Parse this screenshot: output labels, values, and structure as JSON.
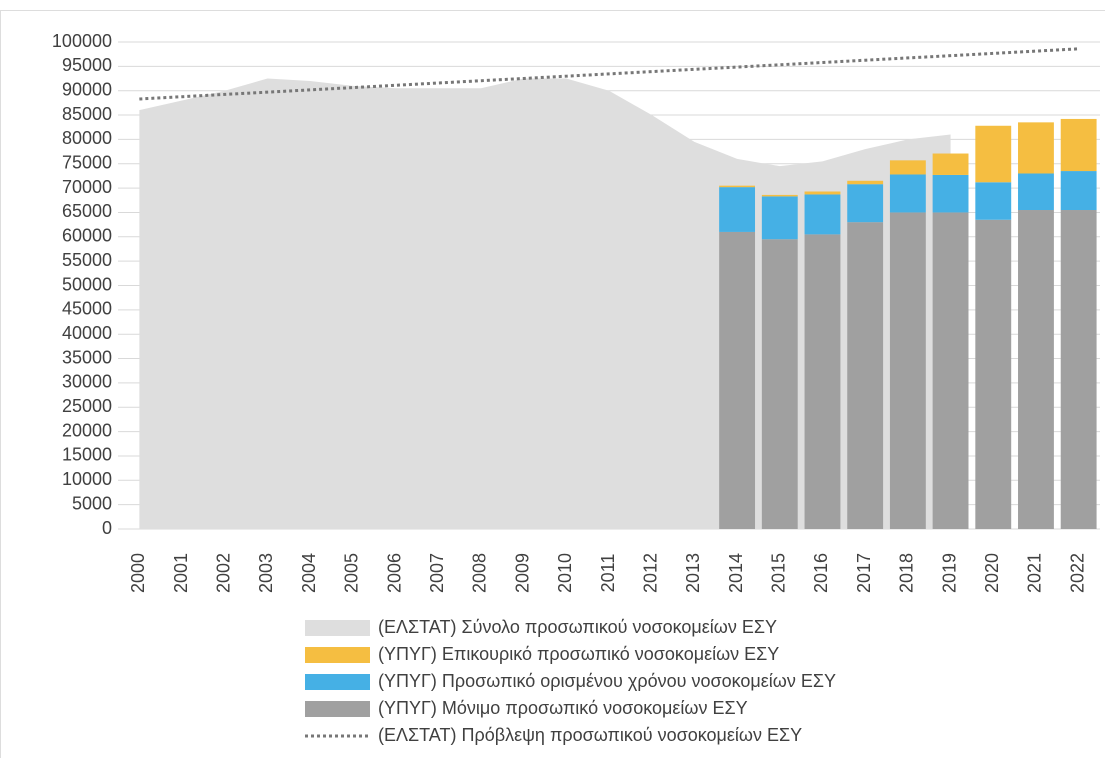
{
  "chart_data": {
    "type": "bar",
    "categories": [
      "2000",
      "2001",
      "2002",
      "2003",
      "2004",
      "2005",
      "2006",
      "2007",
      "2008",
      "2009",
      "2010",
      "2011",
      "2012",
      "2013",
      "2014",
      "2015",
      "2016",
      "2017",
      "2018",
      "2019",
      "2020",
      "2021",
      "2022"
    ],
    "series": [
      {
        "name": "(ΕΛΣΤΑΤ) Σύνολο προσωπικού νοσοκομείων ΕΣΥ",
        "kind": "area",
        "color": "#dedede",
        "values": [
          86000,
          88000,
          90000,
          92500,
          92000,
          91000,
          90500,
          90500,
          90500,
          92500,
          92500,
          90000,
          85000,
          79500,
          76000,
          74500,
          75500,
          78000,
          80000,
          81000,
          null,
          null,
          null
        ]
      },
      {
        "name": "(ΥΠΥΓ) Επικουρικό προσωπικό νοσοκομείων ΕΣΥ",
        "kind": "bar",
        "color": "#f5be41",
        "values": [
          null,
          null,
          null,
          null,
          null,
          null,
          null,
          null,
          null,
          null,
          null,
          null,
          null,
          null,
          300,
          300,
          600,
          700,
          2900,
          4400,
          11600,
          10500,
          10700
        ]
      },
      {
        "name": "(ΥΠΥΓ) Προσωπικό ορισμένου χρόνου νοσοκομείων ΕΣΥ",
        "kind": "bar",
        "color": "#45b0e5",
        "values": [
          null,
          null,
          null,
          null,
          null,
          null,
          null,
          null,
          null,
          null,
          null,
          null,
          null,
          null,
          9200,
          8800,
          8200,
          7800,
          7800,
          7700,
          7700,
          7500,
          8000
        ]
      },
      {
        "name": "(ΥΠΥΓ) Μόνιμο προσωπικό νοσοκομείων ΕΣΥ",
        "kind": "bar",
        "color": "#a0a0a0",
        "values": [
          null,
          null,
          null,
          null,
          null,
          null,
          null,
          null,
          null,
          null,
          null,
          null,
          null,
          null,
          61000,
          59500,
          60500,
          63000,
          65000,
          65000,
          63500,
          65500,
          65500
        ]
      },
      {
        "name": "(ΕΛΣΤΑΤ) Πρόβλεψη προσωπικού νοσοκομείων ΕΣΥ",
        "kind": "line",
        "dashed": true,
        "color": "#777777",
        "values": [
          88300,
          88770,
          89240,
          89700,
          90170,
          90640,
          91110,
          91580,
          92050,
          92510,
          92980,
          93450,
          93920,
          94390,
          94850,
          95320,
          95790,
          96260,
          96730,
          97190,
          97660,
          98130,
          98600
        ]
      }
    ],
    "ylim": [
      0,
      100000
    ],
    "yticks": [
      0,
      5000,
      10000,
      15000,
      20000,
      25000,
      30000,
      35000,
      40000,
      45000,
      50000,
      55000,
      60000,
      65000,
      70000,
      75000,
      80000,
      85000,
      90000,
      95000,
      100000
    ],
    "grid": true,
    "legend": "bottom"
  }
}
